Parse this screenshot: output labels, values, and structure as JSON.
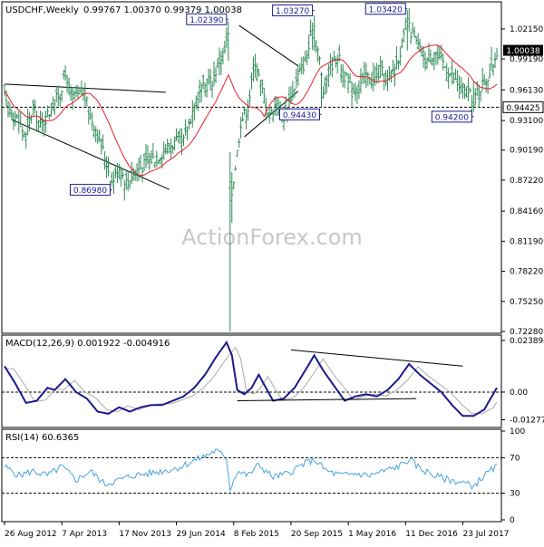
{
  "header": {
    "symbol_label": "USDCHF,Weekly",
    "ohlc_label": "0.99767 1.00370 0.99379 1.00038"
  },
  "watermark": "ActionForex.com",
  "colors": {
    "bars": "#2e8b57",
    "ma": "#e8202a",
    "macd": "#1a1a8c",
    "signal": "#aaaaaa",
    "rsi": "#4aa3df",
    "level_box": "#1a1a8c",
    "current_box": "#000000"
  },
  "chart_data": [
    {
      "type": "ohlc",
      "name": "price",
      "title": "USDCHF,Weekly",
      "y_ticks": [
        "1.02150",
        "0.99190",
        "0.96130",
        "0.93100",
        "0.90190",
        "0.87220",
        "0.84160",
        "0.81190",
        "0.78220",
        "0.75250",
        "0.72280"
      ],
      "y_range": [
        0.7228,
        1.0465
      ],
      "current_price": "1.00038",
      "support_level": "0.94425",
      "level_labels": [
        {
          "text": "0.86980",
          "value": 0.8698,
          "week": 60
        },
        {
          "text": "1.02390",
          "value": 1.0239,
          "week": 125
        },
        {
          "text": "1.03270",
          "value": 1.0327,
          "week": 173
        },
        {
          "text": "0.94430",
          "value": 0.9443,
          "week": 177
        },
        {
          "text": "1.03420",
          "value": 1.0342,
          "week": 225
        },
        {
          "text": "0.94200",
          "value": 0.942,
          "week": 262
        }
      ],
      "anchors": [
        {
          "w": 0,
          "v": 0.955
        },
        {
          "w": 4,
          "v": 0.94
        },
        {
          "w": 8,
          "v": 0.93
        },
        {
          "w": 12,
          "v": 0.915
        },
        {
          "w": 16,
          "v": 0.945
        },
        {
          "w": 20,
          "v": 0.925
        },
        {
          "w": 25,
          "v": 0.94
        },
        {
          "w": 30,
          "v": 0.955
        },
        {
          "w": 34,
          "v": 0.975
        },
        {
          "w": 38,
          "v": 0.95
        },
        {
          "w": 44,
          "v": 0.96
        },
        {
          "w": 48,
          "v": 0.935
        },
        {
          "w": 52,
          "v": 0.92
        },
        {
          "w": 56,
          "v": 0.895
        },
        {
          "w": 60,
          "v": 0.87
        },
        {
          "w": 64,
          "v": 0.885
        },
        {
          "w": 68,
          "v": 0.87
        },
        {
          "w": 72,
          "v": 0.88
        },
        {
          "w": 76,
          "v": 0.885
        },
        {
          "w": 80,
          "v": 0.89
        },
        {
          "w": 84,
          "v": 0.895
        },
        {
          "w": 88,
          "v": 0.9
        },
        {
          "w": 92,
          "v": 0.905
        },
        {
          "w": 96,
          "v": 0.91
        },
        {
          "w": 100,
          "v": 0.91
        },
        {
          "w": 104,
          "v": 0.935
        },
        {
          "w": 108,
          "v": 0.955
        },
        {
          "w": 112,
          "v": 0.965
        },
        {
          "w": 116,
          "v": 0.97
        },
        {
          "w": 120,
          "v": 0.99
        },
        {
          "w": 123,
          "v": 1.0
        },
        {
          "w": 125,
          "v": 1.015
        },
        {
          "w": 126,
          "v": 0.865
        },
        {
          "w": 127,
          "v": 0.86
        },
        {
          "w": 130,
          "v": 0.9
        },
        {
          "w": 132,
          "v": 0.93
        },
        {
          "w": 136,
          "v": 0.945
        },
        {
          "w": 140,
          "v": 0.99
        },
        {
          "w": 144,
          "v": 0.96
        },
        {
          "w": 148,
          "v": 0.935
        },
        {
          "w": 152,
          "v": 0.95
        },
        {
          "w": 156,
          "v": 0.935
        },
        {
          "w": 160,
          "v": 0.955
        },
        {
          "w": 164,
          "v": 0.975
        },
        {
          "w": 168,
          "v": 0.99
        },
        {
          "w": 171,
          "v": 1.01
        },
        {
          "w": 173,
          "v": 1.025
        },
        {
          "w": 176,
          "v": 0.99
        },
        {
          "w": 178,
          "v": 0.96
        },
        {
          "w": 182,
          "v": 0.985
        },
        {
          "w": 186,
          "v": 0.995
        },
        {
          "w": 190,
          "v": 0.975
        },
        {
          "w": 194,
          "v": 0.96
        },
        {
          "w": 198,
          "v": 0.965
        },
        {
          "w": 202,
          "v": 0.975
        },
        {
          "w": 206,
          "v": 0.97
        },
        {
          "w": 210,
          "v": 0.98
        },
        {
          "w": 214,
          "v": 0.97
        },
        {
          "w": 218,
          "v": 0.985
        },
        {
          "w": 222,
          "v": 1.005
        },
        {
          "w": 225,
          "v": 1.025
        },
        {
          "w": 228,
          "v": 1.015
        },
        {
          "w": 232,
          "v": 1.0
        },
        {
          "w": 236,
          "v": 0.99
        },
        {
          "w": 240,
          "v": 1.0
        },
        {
          "w": 244,
          "v": 0.99
        },
        {
          "w": 248,
          "v": 0.98
        },
        {
          "w": 252,
          "v": 0.97
        },
        {
          "w": 256,
          "v": 0.96
        },
        {
          "w": 260,
          "v": 0.955
        },
        {
          "w": 262,
          "v": 0.945
        },
        {
          "w": 264,
          "v": 0.96
        },
        {
          "w": 268,
          "v": 0.97
        },
        {
          "w": 272,
          "v": 0.98
        },
        {
          "w": 275,
          "v": 1.0
        }
      ],
      "spikes": [
        {
          "w": 126,
          "high": 0.9,
          "low": 0.7228
        },
        {
          "w": 125,
          "high": 1.0239,
          "low": 0.99
        },
        {
          "w": 127,
          "high": 0.88,
          "low": 0.83
        },
        {
          "w": 60,
          "high": 0.88,
          "low": 0.8698
        },
        {
          "w": 173,
          "high": 1.0327,
          "low": 1.0
        },
        {
          "w": 177,
          "high": 0.975,
          "low": 0.9443
        },
        {
          "w": 225,
          "high": 1.0342,
          "low": 1.0
        },
        {
          "w": 262,
          "high": 0.97,
          "low": 0.942
        }
      ]
    },
    {
      "type": "line",
      "name": "macd",
      "title": "MACD(12,26,9) 0.001922 -0.004916",
      "y_ticks": [
        "0.023894",
        "0.00",
        "-0.012772"
      ],
      "y_range": [
        -0.0155,
        0.0255
      ],
      "macd_anchors": [
        {
          "w": 0,
          "v": 0.012
        },
        {
          "w": 6,
          "v": 0.004
        },
        {
          "w": 12,
          "v": -0.005
        },
        {
          "w": 18,
          "v": -0.004
        },
        {
          "w": 24,
          "v": 0.002
        },
        {
          "w": 28,
          "v": 0.001
        },
        {
          "w": 34,
          "v": 0.006
        },
        {
          "w": 40,
          "v": 0.0
        },
        {
          "w": 46,
          "v": -0.003
        },
        {
          "w": 52,
          "v": -0.009
        },
        {
          "w": 58,
          "v": -0.01
        },
        {
          "w": 64,
          "v": -0.007
        },
        {
          "w": 70,
          "v": -0.009
        },
        {
          "w": 76,
          "v": -0.007
        },
        {
          "w": 82,
          "v": -0.006
        },
        {
          "w": 88,
          "v": -0.006
        },
        {
          "w": 94,
          "v": -0.004
        },
        {
          "w": 100,
          "v": -0.002
        },
        {
          "w": 106,
          "v": 0.002
        },
        {
          "w": 112,
          "v": 0.008
        },
        {
          "w": 118,
          "v": 0.016
        },
        {
          "w": 124,
          "v": 0.023
        },
        {
          "w": 127,
          "v": 0.017
        },
        {
          "w": 130,
          "v": 0.001
        },
        {
          "w": 134,
          "v": -0.001
        },
        {
          "w": 138,
          "v": 0.002
        },
        {
          "w": 142,
          "v": 0.008
        },
        {
          "w": 146,
          "v": 0.002
        },
        {
          "w": 150,
          "v": -0.004
        },
        {
          "w": 156,
          "v": -0.003
        },
        {
          "w": 162,
          "v": 0.002
        },
        {
          "w": 168,
          "v": 0.01
        },
        {
          "w": 173,
          "v": 0.017
        },
        {
          "w": 178,
          "v": 0.01
        },
        {
          "w": 184,
          "v": 0.003
        },
        {
          "w": 190,
          "v": -0.004
        },
        {
          "w": 196,
          "v": -0.002
        },
        {
          "w": 202,
          "v": -0.001
        },
        {
          "w": 208,
          "v": -0.002
        },
        {
          "w": 214,
          "v": 0.001
        },
        {
          "w": 220,
          "v": 0.006
        },
        {
          "w": 226,
          "v": 0.013
        },
        {
          "w": 232,
          "v": 0.008
        },
        {
          "w": 238,
          "v": 0.004
        },
        {
          "w": 244,
          "v": 0.0
        },
        {
          "w": 250,
          "v": -0.006
        },
        {
          "w": 256,
          "v": -0.011
        },
        {
          "w": 262,
          "v": -0.011
        },
        {
          "w": 268,
          "v": -0.008
        },
        {
          "w": 275,
          "v": 0.002
        }
      ],
      "signal_lag_weeks": 5
    },
    {
      "type": "line",
      "name": "rsi",
      "title": "RSI(14) 60.6365",
      "y_ticks": [
        "100",
        "70",
        "30",
        "0"
      ],
      "y_range": [
        0,
        100
      ],
      "levels": [
        70,
        30
      ],
      "anchors": [
        {
          "w": 0,
          "v": 60
        },
        {
          "w": 8,
          "v": 50
        },
        {
          "w": 16,
          "v": 55
        },
        {
          "w": 24,
          "v": 50
        },
        {
          "w": 32,
          "v": 60
        },
        {
          "w": 40,
          "v": 45
        },
        {
          "w": 48,
          "v": 55
        },
        {
          "w": 56,
          "v": 40
        },
        {
          "w": 64,
          "v": 45
        },
        {
          "w": 72,
          "v": 50
        },
        {
          "w": 80,
          "v": 52
        },
        {
          "w": 88,
          "v": 55
        },
        {
          "w": 96,
          "v": 58
        },
        {
          "w": 104,
          "v": 65
        },
        {
          "w": 112,
          "v": 72
        },
        {
          "w": 118,
          "v": 78
        },
        {
          "w": 124,
          "v": 70
        },
        {
          "w": 126,
          "v": 35
        },
        {
          "w": 130,
          "v": 55
        },
        {
          "w": 136,
          "v": 50
        },
        {
          "w": 142,
          "v": 62
        },
        {
          "w": 150,
          "v": 48
        },
        {
          "w": 158,
          "v": 52
        },
        {
          "w": 166,
          "v": 62
        },
        {
          "w": 173,
          "v": 68
        },
        {
          "w": 180,
          "v": 55
        },
        {
          "w": 188,
          "v": 50
        },
        {
          "w": 196,
          "v": 52
        },
        {
          "w": 204,
          "v": 50
        },
        {
          "w": 212,
          "v": 55
        },
        {
          "w": 220,
          "v": 60
        },
        {
          "w": 226,
          "v": 68
        },
        {
          "w": 232,
          "v": 58
        },
        {
          "w": 240,
          "v": 50
        },
        {
          "w": 248,
          "v": 45
        },
        {
          "w": 256,
          "v": 42
        },
        {
          "w": 262,
          "v": 38
        },
        {
          "w": 268,
          "v": 50
        },
        {
          "w": 275,
          "v": 60
        }
      ]
    }
  ],
  "x_axis": {
    "weeks_total": 276,
    "labels": [
      {
        "text": "26 Aug 2012",
        "week": 0
      },
      {
        "text": "7 Apr 2013",
        "week": 32
      },
      {
        "text": "17 Nov 2013",
        "week": 64
      },
      {
        "text": "29 Jun 2014",
        "week": 96
      },
      {
        "text": "8 Feb 2015",
        "week": 128
      },
      {
        "text": "20 Sep 2015",
        "week": 160
      },
      {
        "text": "1 May 2016",
        "week": 192
      },
      {
        "text": "11 Dec 2016",
        "week": 224
      },
      {
        "text": "23 Jul 2017",
        "week": 256
      }
    ]
  }
}
